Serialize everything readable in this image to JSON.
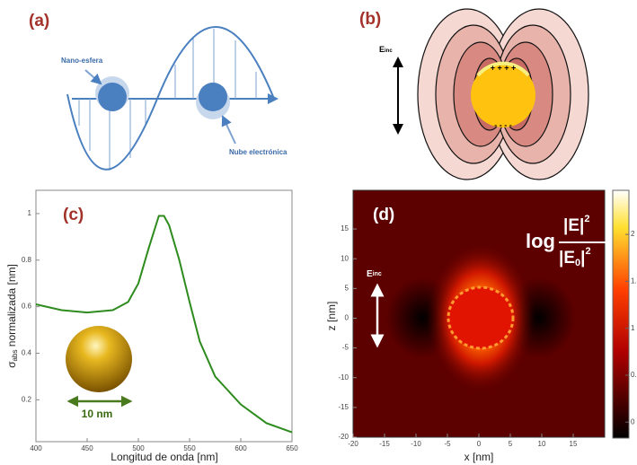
{
  "panels": {
    "a": {
      "label": "(a)",
      "sphere_label": "Nano-esfera",
      "cloud_label": "Nube electrónica"
    },
    "b": {
      "label": "(b)",
      "field_label": "E",
      "field_sub": "inc"
    }
  },
  "chart_data": [
    {
      "type": "line",
      "label": "(c)",
      "xlabel": "Longitud de onda [nm]",
      "ylabel_symbol": "σ",
      "ylabel_sub": "abs",
      "ylabel_rest": " normalizada [nm]",
      "inset_label": "10 nm",
      "x": [
        400,
        425,
        450,
        475,
        490,
        500,
        510,
        520,
        525,
        530,
        540,
        550,
        560,
        575,
        600,
        625,
        650
      ],
      "series": [
        {
          "color": "#2e8b1e",
          "values": [
            0.61,
            0.585,
            0.575,
            0.585,
            0.62,
            0.7,
            0.85,
            0.99,
            0.99,
            0.95,
            0.8,
            0.62,
            0.45,
            0.3,
            0.18,
            0.1,
            0.06
          ]
        }
      ],
      "xlim": [
        400,
        650
      ],
      "ylim": [
        0.02,
        1.1
      ],
      "xticks": [
        400,
        450,
        500,
        550,
        600,
        650
      ],
      "yticks": [
        0.2,
        0.4,
        0.6,
        0.8,
        1
      ]
    },
    {
      "type": "heatmap",
      "label": "(d)",
      "xlabel": "x [nm]",
      "ylabel": "z [nm]",
      "field_label": "E",
      "field_sub": "inc",
      "scale_log": "log",
      "numerator": "|E|",
      "numerator_exp": "2",
      "denominator": "|E",
      "denominator_sub": "0",
      "denominator_close": "|",
      "denominator_exp": "2",
      "xlim": [
        -20,
        20
      ],
      "ylim": [
        -20,
        21.5
      ],
      "xticks": [
        -20,
        -15,
        -10,
        -5,
        0,
        5,
        10,
        15
      ],
      "yticks": [
        -20,
        -15,
        -10,
        -5,
        0,
        5,
        10,
        15
      ],
      "colorbar_lim": [
        -0.17,
        2.47
      ],
      "colorbar_ticks": [
        0,
        0.5,
        1,
        1.5,
        2
      ]
    }
  ]
}
